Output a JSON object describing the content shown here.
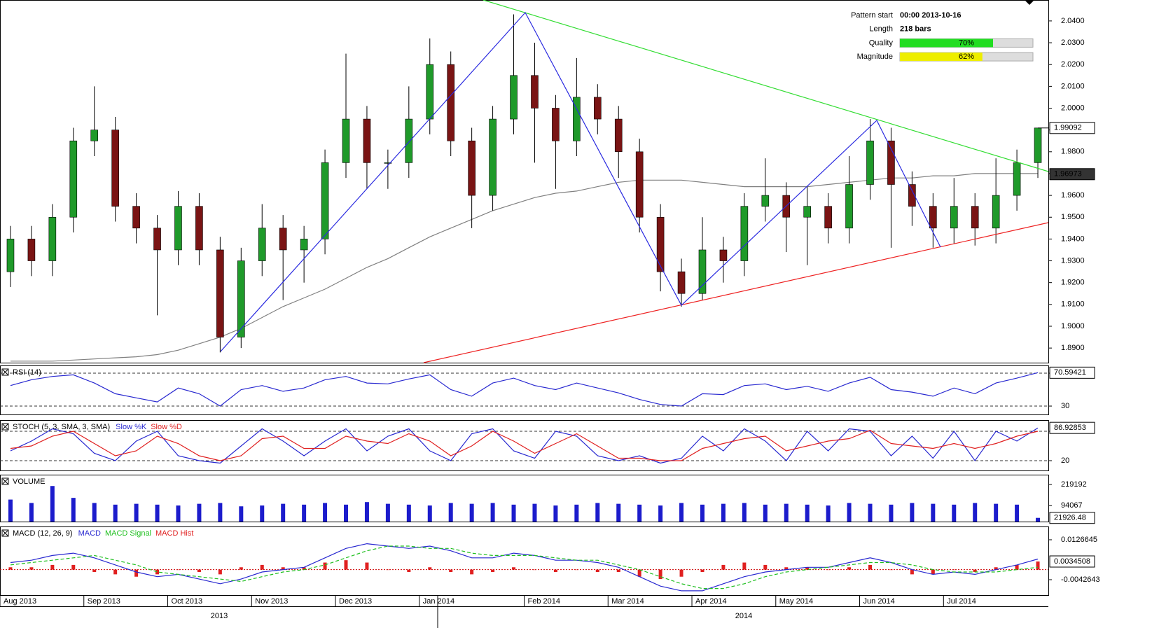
{
  "chart_data": [
    {
      "type": "candlestick",
      "categories": [
        "Aug 2013",
        null,
        null,
        null,
        "Sep 2013",
        null,
        null,
        null,
        "Oct 2013",
        null,
        null,
        null,
        "Nov 2013",
        null,
        null,
        null,
        "Dec 2013",
        null,
        null,
        null,
        "Jan 2014",
        null,
        null,
        null,
        null,
        "Feb 2014",
        null,
        null,
        null,
        "Mar 2014",
        null,
        null,
        null,
        "Apr 2014",
        null,
        null,
        null,
        "May 2014",
        null,
        null,
        null,
        "Jun 2014",
        null,
        null,
        null,
        "Jul 2014",
        null,
        null,
        null,
        null
      ],
      "x_groups": [
        "2013",
        "2014"
      ],
      "open": [
        1.925,
        1.94,
        1.93,
        1.95,
        1.985,
        1.99,
        1.955,
        1.945,
        1.935,
        1.955,
        1.935,
        1.895,
        1.93,
        1.945,
        1.935,
        1.94,
        1.975,
        1.995,
        1.975,
        1.975,
        1.995,
        2.02,
        1.985,
        1.96,
        1.995,
        2.015,
        2.0,
        1.985,
        2.005,
        1.995,
        1.98,
        1.95,
        1.925,
        1.915,
        1.935,
        1.93,
        1.955,
        1.96,
        1.95,
        1.955,
        1.945,
        1.965,
        1.985,
        1.965,
        1.955,
        1.945,
        1.955,
        1.945,
        1.96,
        1.975
      ],
      "high": [
        1.946,
        1.946,
        1.956,
        1.991,
        2.01,
        1.996,
        1.961,
        1.951,
        1.962,
        1.961,
        1.941,
        1.936,
        1.956,
        1.951,
        1.946,
        1.981,
        2.025,
        2.001,
        1.981,
        2.01,
        2.032,
        2.026,
        1.991,
        2.001,
        2.043,
        2.03,
        2.006,
        2.023,
        2.011,
        2.001,
        1.986,
        1.956,
        1.931,
        1.95,
        1.941,
        1.961,
        1.977,
        1.966,
        1.964,
        1.961,
        1.978,
        1.995,
        1.991,
        1.971,
        1.961,
        1.968,
        1.961,
        1.977,
        1.981,
        1.991
      ],
      "low": [
        1.918,
        1.923,
        1.923,
        1.943,
        1.978,
        1.948,
        1.938,
        1.905,
        1.928,
        1.928,
        1.888,
        1.89,
        1.923,
        1.912,
        1.92,
        1.933,
        1.968,
        1.963,
        1.963,
        1.968,
        1.988,
        1.978,
        1.945,
        1.953,
        1.988,
        1.975,
        1.963,
        1.978,
        1.988,
        1.968,
        1.943,
        1.916,
        1.909,
        1.912,
        1.92,
        1.923,
        1.948,
        1.934,
        1.928,
        1.938,
        1.938,
        1.958,
        1.936,
        1.946,
        1.936,
        1.938,
        1.937,
        1.938,
        1.953,
        1.968
      ],
      "close": [
        1.94,
        1.93,
        1.95,
        1.985,
        1.99,
        1.955,
        1.945,
        1.935,
        1.955,
        1.935,
        1.895,
        1.93,
        1.945,
        1.935,
        1.94,
        1.975,
        1.995,
        1.975,
        1.975,
        1.995,
        2.02,
        1.985,
        1.96,
        1.995,
        2.015,
        2.0,
        1.985,
        2.005,
        1.995,
        1.98,
        1.95,
        1.925,
        1.915,
        1.935,
        1.93,
        1.955,
        1.96,
        1.95,
        1.955,
        1.945,
        1.965,
        1.985,
        1.965,
        1.955,
        1.945,
        1.955,
        1.945,
        1.96,
        1.975,
        1.99092
      ],
      "up_color": "#1f9a2a",
      "down_color": "#7a1414",
      "last_value": 1.99092,
      "series": [
        {
          "color": "#808080",
          "last_value": 1.96973,
          "values": [
            1.884,
            1.884,
            1.884,
            1.8845,
            1.885,
            1.8855,
            1.886,
            1.887,
            1.889,
            1.892,
            1.895,
            1.899,
            1.904,
            1.909,
            1.913,
            1.917,
            1.922,
            1.927,
            1.931,
            1.936,
            1.941,
            1.945,
            1.949,
            1.953,
            1.956,
            1.959,
            1.961,
            1.962,
            1.964,
            1.966,
            1.967,
            1.967,
            1.967,
            1.966,
            1.965,
            1.964,
            1.964,
            1.964,
            1.964,
            1.965,
            1.966,
            1.967,
            1.968,
            1.968,
            1.969,
            1.969,
            1.97,
            1.97,
            1.97,
            1.97
          ]
        }
      ],
      "ylim": [
        1.8833,
        2.0496
      ],
      "yticks": [
        {
          "value": 1.89,
          "label": "1.8900"
        },
        {
          "value": 1.9,
          "label": "1.9000"
        },
        {
          "value": 1.91,
          "label": "1.9100"
        },
        {
          "value": 1.92,
          "label": "1.9200"
        },
        {
          "value": 1.93,
          "label": "1.9300"
        },
        {
          "value": 1.94,
          "label": "1.9400"
        },
        {
          "value": 1.95,
          "label": "1.9500"
        },
        {
          "value": 1.96,
          "label": "1.9600"
        },
        {
          "value": 1.97,
          "label": "1.9700"
        },
        {
          "value": 1.98,
          "label": "1.9800"
        },
        {
          "value": 1.99,
          "label": "1.9900"
        },
        {
          "value": 2.0,
          "label": "2.0000"
        },
        {
          "value": 2.01,
          "label": "2.0100"
        },
        {
          "value": 2.02,
          "label": "2.0200"
        },
        {
          "value": 2.03,
          "label": "2.0300"
        },
        {
          "value": 2.04,
          "label": "2.0400"
        }
      ],
      "grid": false
    },
    {
      "type": "line",
      "title": "RSI (14)",
      "series": [
        {
          "color": "#2828d0",
          "values": [
            55,
            62,
            66,
            68,
            58,
            45,
            40,
            35,
            52,
            45,
            30,
            50,
            55,
            48,
            52,
            62,
            66,
            58,
            57,
            63,
            68,
            50,
            42,
            58,
            64,
            55,
            50,
            58,
            52,
            46,
            38,
            32,
            30,
            45,
            44,
            55,
            57,
            50,
            54,
            48,
            58,
            65,
            50,
            47,
            42,
            52,
            45,
            58,
            64,
            70.59421
          ]
        }
      ],
      "last_value": 70.59421,
      "ylim": [
        19.8,
        79.4
      ],
      "yticks": [
        30,
        70
      ],
      "grid": true
    },
    {
      "type": "line",
      "title": "STOCH (5, 3, SMA, 3, SMA)",
      "series": [
        {
          "name": "Slow %K",
          "color": "#2828d0",
          "values": [
            40,
            60,
            85,
            75,
            35,
            20,
            60,
            80,
            30,
            20,
            15,
            50,
            85,
            60,
            30,
            60,
            85,
            40,
            70,
            85,
            40,
            20,
            75,
            85,
            40,
            25,
            80,
            70,
            30,
            20,
            30,
            15,
            25,
            70,
            40,
            85,
            60,
            20,
            80,
            40,
            85,
            80,
            30,
            70,
            25,
            80,
            20,
            80,
            60,
            86.92853
          ]
        },
        {
          "name": "Slow %D",
          "color": "#e02020",
          "values": [
            45,
            50,
            70,
            80,
            55,
            30,
            40,
            70,
            55,
            30,
            20,
            30,
            65,
            70,
            45,
            45,
            70,
            60,
            55,
            75,
            60,
            30,
            50,
            80,
            60,
            35,
            55,
            75,
            50,
            25,
            25,
            20,
            20,
            45,
            55,
            65,
            70,
            40,
            50,
            60,
            65,
            82,
            55,
            50,
            45,
            55,
            45,
            55,
            70,
            80
          ]
        }
      ],
      "last_value": 86.92853,
      "ylim": [
        0,
        102.9
      ],
      "yticks": [
        20,
        80
      ],
      "grid": true
    },
    {
      "type": "bar",
      "title": "VOLUME",
      "color": "#1c1ccc",
      "values": [
        130000,
        110000,
        210000,
        140000,
        110000,
        100000,
        105000,
        100000,
        95000,
        105000,
        110000,
        90000,
        95000,
        105000,
        100000,
        110000,
        100000,
        115000,
        105000,
        100000,
        95000,
        110000,
        105000,
        110000,
        100000,
        105000,
        95000,
        100000,
        110000,
        105000,
        100000,
        95000,
        110000,
        100000,
        105000,
        110000,
        100000,
        105000,
        100000,
        95000,
        110000,
        105000,
        100000,
        110000,
        105000,
        100000,
        110000,
        105000,
        100000,
        21926.48
      ],
      "last_value": 21926.48,
      "ylim": [
        0,
        277000
      ],
      "yticks": [
        94067,
        219192
      ],
      "grid": false
    },
    {
      "type": "line",
      "title": "MACD (12, 26, 9)",
      "series": [
        {
          "name": "MACD",
          "color": "#2828d0",
          "values": [
            0.003,
            0.004,
            0.006,
            0.007,
            0.005,
            0.002,
            -0.001,
            -0.003,
            -0.002,
            -0.004,
            -0.006,
            -0.004,
            -0.001,
            0.0,
            0.001,
            0.005,
            0.009,
            0.011,
            0.01,
            0.009,
            0.01,
            0.008,
            0.005,
            0.005,
            0.007,
            0.006,
            0.004,
            0.004,
            0.003,
            0.001,
            -0.003,
            -0.007,
            -0.009,
            -0.009,
            -0.006,
            -0.003,
            -0.001,
            0.0,
            0.001,
            0.001,
            0.003,
            0.005,
            0.003,
            0.0,
            -0.002,
            -0.001,
            -0.002,
            0.0,
            0.002,
            0.0045
          ]
        },
        {
          "name": "MACD Signal",
          "color": "#1fbf1f",
          "dashed": true,
          "values": [
            0.002,
            0.003,
            0.004,
            0.005,
            0.006,
            0.004,
            0.002,
            -0.001,
            -0.002,
            -0.003,
            -0.004,
            -0.005,
            -0.003,
            -0.001,
            0.0,
            0.002,
            0.005,
            0.008,
            0.01,
            0.01,
            0.009,
            0.009,
            0.007,
            0.006,
            0.006,
            0.006,
            0.005,
            0.004,
            0.004,
            0.002,
            0.0,
            -0.003,
            -0.006,
            -0.008,
            -0.008,
            -0.006,
            -0.003,
            -0.001,
            0.0,
            0.001,
            0.002,
            0.003,
            0.003,
            0.002,
            0.0,
            -0.001,
            -0.001,
            -0.001,
            0.0,
            0.001
          ]
        },
        {
          "name": "MACD Hist",
          "color": "#e02020",
          "type": "bar",
          "values": [
            0.001,
            0.001,
            0.002,
            0.002,
            -0.001,
            -0.002,
            -0.003,
            -0.002,
            0.0,
            -0.001,
            -0.002,
            0.001,
            0.002,
            0.001,
            0.001,
            0.003,
            0.004,
            0.003,
            0.0,
            -0.001,
            0.001,
            -0.001,
            -0.002,
            -0.001,
            0.001,
            0.0,
            -0.001,
            0.0,
            -0.001,
            -0.001,
            -0.003,
            -0.004,
            -0.003,
            -0.001,
            0.002,
            0.003,
            0.002,
            0.001,
            0.001,
            0.0,
            0.001,
            0.002,
            0.0,
            -0.002,
            -0.002,
            0.0,
            -0.001,
            0.001,
            0.002,
            0.0034508
          ]
        }
      ],
      "last_value": 0.0034508,
      "ylim": [
        -0.0108,
        0.0183
      ],
      "yticks": [
        -0.0042643,
        0.0126645
      ],
      "grid": false
    }
  ],
  "pattern_info": [
    {
      "label": "Pattern start",
      "value": "00:00 2013-10-16"
    },
    {
      "label": "Length",
      "value": "218 bars"
    },
    {
      "label": "Quality",
      "value": 70,
      "value_label": "70%",
      "color": "#22dd22"
    },
    {
      "label": "Magnitude",
      "value": 62,
      "value_label": "62%",
      "color": "#eeee00"
    }
  ]
}
